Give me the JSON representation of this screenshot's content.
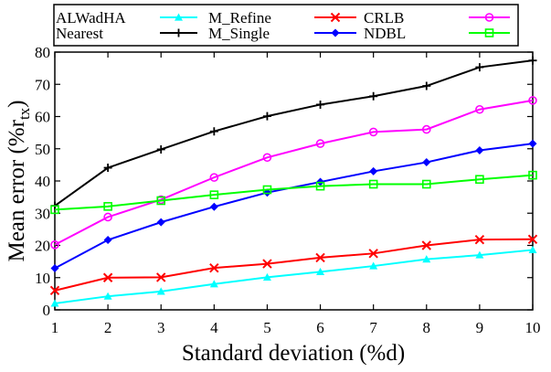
{
  "chart_data": {
    "type": "line",
    "title": "",
    "xlabel": "Standard deviation (%d)",
    "ylabel_main": "Mean error (%r",
    "ylabel_sub": "tx",
    "ylabel_close": ")",
    "x": [
      1,
      2,
      3,
      4,
      5,
      6,
      7,
      8,
      9,
      10
    ],
    "xlim": [
      1,
      10
    ],
    "ylim": [
      0,
      80
    ],
    "xticks": [
      "1",
      "2",
      "3",
      "4",
      "5",
      "6",
      "7",
      "8",
      "9",
      "10"
    ],
    "yticks": [
      0,
      10,
      20,
      30,
      40,
      50,
      60,
      70,
      80
    ],
    "grid": false,
    "legend_position": "top (above plot, outside)",
    "legend_text_rows": [
      [
        "ALWadHA",
        "M_Refine",
        "CRLB"
      ],
      [
        "Nearest",
        "M_Single",
        "NDBL"
      ]
    ],
    "series": [
      {
        "name": "M_Refine",
        "color": "#00ffff",
        "marker": "triangle",
        "values": [
          2.0,
          4.2,
          5.7,
          8.0,
          10.1,
          11.8,
          13.6,
          15.7,
          17.0,
          18.6
        ]
      },
      {
        "name": "M_Single",
        "color": "#000000",
        "marker": "plus",
        "values": [
          32.3,
          44.1,
          49.8,
          55.4,
          60.1,
          63.7,
          66.3,
          69.5,
          75.3,
          77.4
        ]
      },
      {
        "name": "CRLB",
        "color": "#ff0000",
        "marker": "x",
        "values": [
          6.0,
          10.0,
          10.1,
          13.0,
          14.3,
          16.2,
          17.5,
          20.0,
          21.8,
          21.9
        ]
      },
      {
        "name": "NDBL",
        "color": "#0000ff",
        "marker": "diamond",
        "values": [
          12.9,
          21.7,
          27.2,
          32.0,
          36.4,
          39.7,
          43.0,
          45.8,
          49.5,
          51.6
        ]
      },
      {
        "name": "ALWadHA",
        "color": "#ff00ff",
        "marker": "circle",
        "values": [
          20.2,
          28.8,
          34.2,
          41.1,
          47.3,
          51.6,
          55.2,
          56.0,
          62.2,
          65.0
        ]
      },
      {
        "name": "Nearest",
        "color": "#00ff00",
        "marker": "square",
        "values": [
          31.1,
          32.1,
          33.9,
          35.7,
          37.3,
          38.4,
          39.0,
          39.0,
          40.5,
          41.8
        ]
      }
    ]
  }
}
